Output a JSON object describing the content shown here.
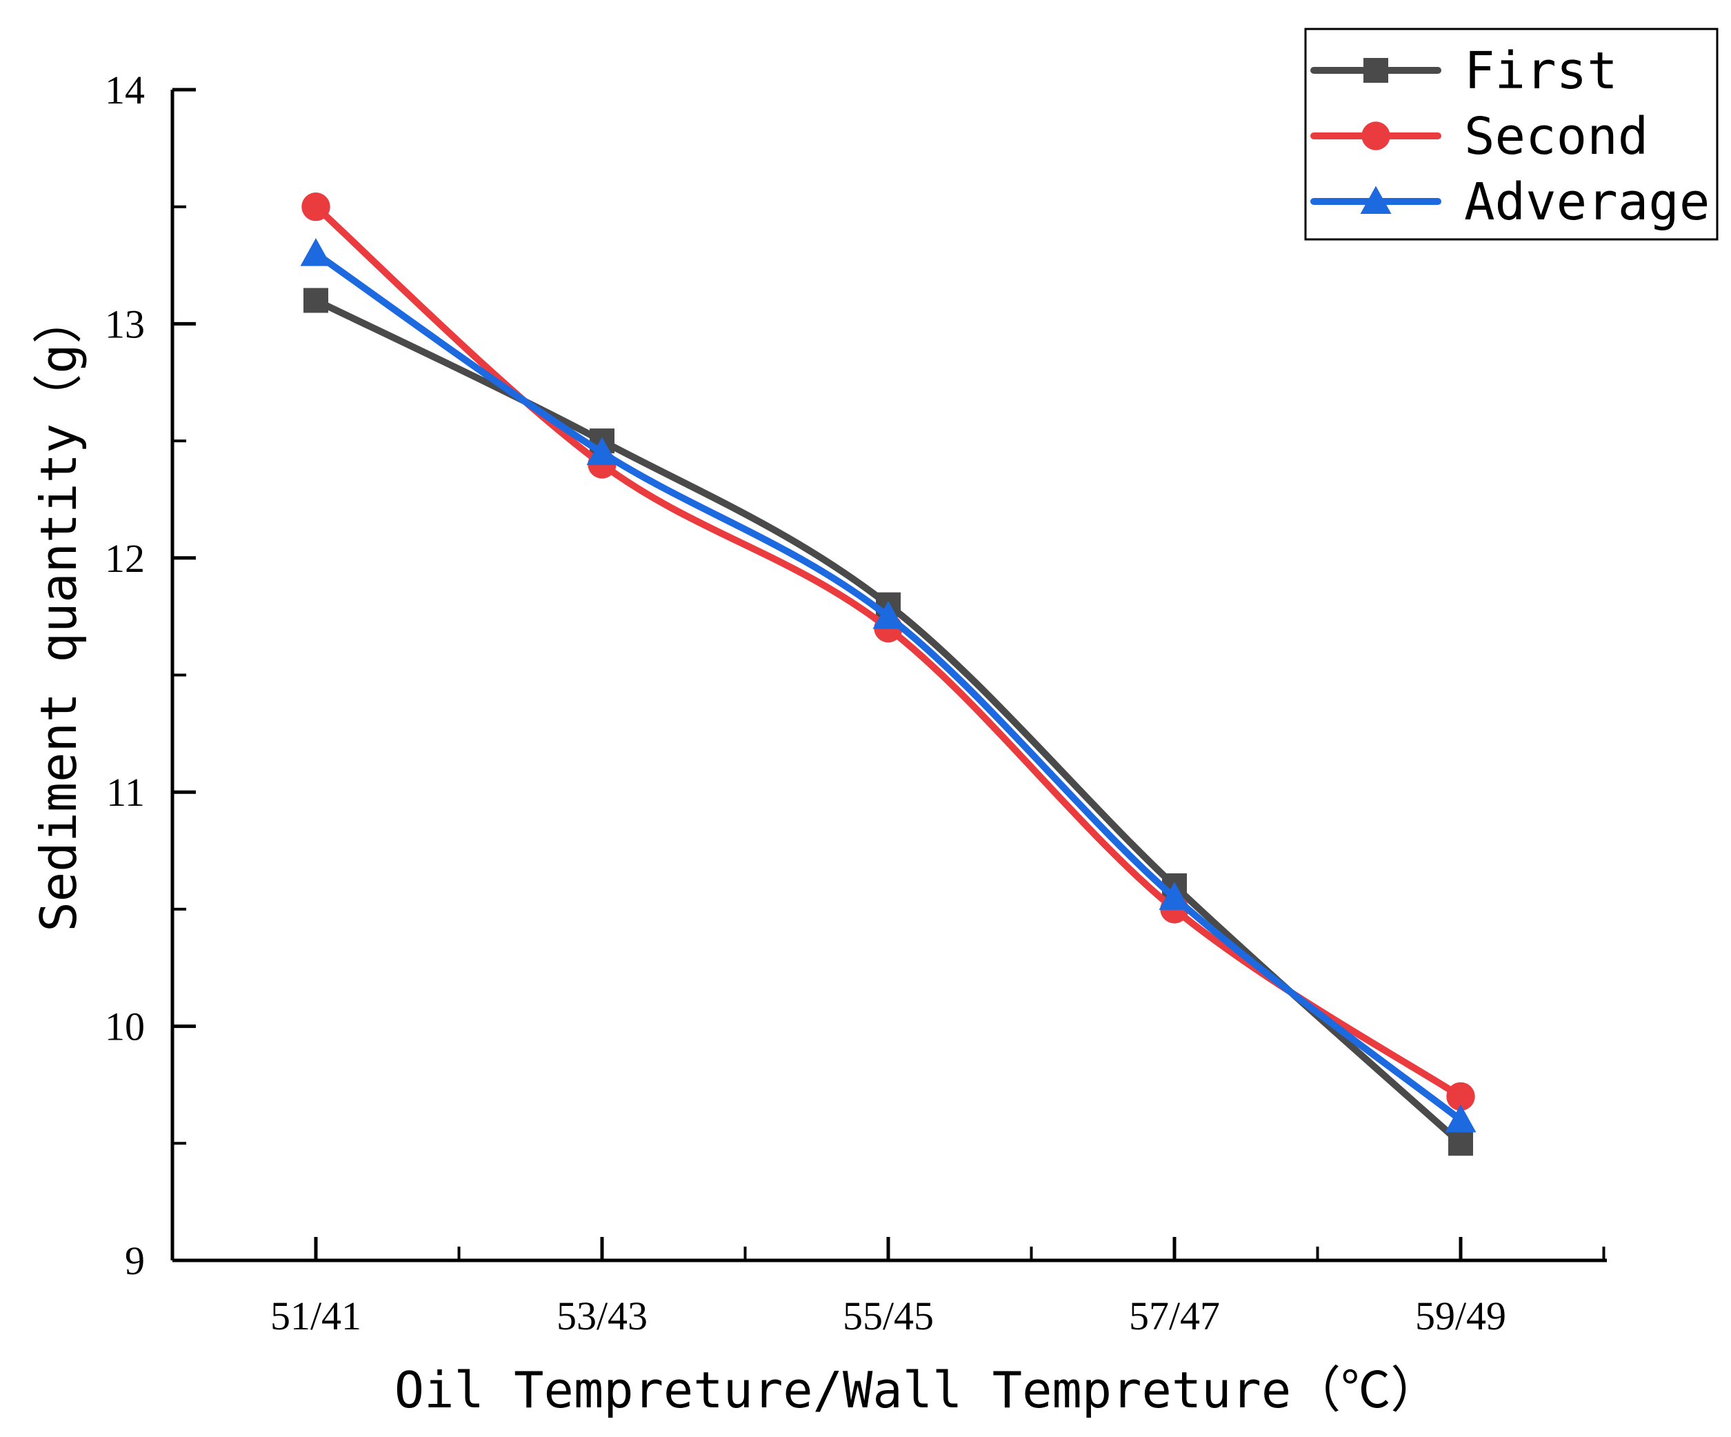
{
  "chart_data": {
    "type": "line",
    "title": "",
    "xlabel": "Oil Tempreture/Wall Tempreture（℃）",
    "ylabel": "Sediment quantity（g）",
    "categories": [
      "51/41",
      "53/43",
      "55/45",
      "57/47",
      "59/49"
    ],
    "ylim": [
      9,
      14
    ],
    "yticks": [
      9,
      10,
      11,
      12,
      13,
      14
    ],
    "grid": false,
    "legend_position": "top-right",
    "smooth": true,
    "series": [
      {
        "name": "First",
        "color": "#4a4a4a",
        "marker": "square",
        "values": [
          13.1,
          12.5,
          11.8,
          10.6,
          9.5
        ]
      },
      {
        "name": "Second",
        "color": "#ea3b3f",
        "marker": "circle",
        "values": [
          13.5,
          12.4,
          11.7,
          10.5,
          9.7
        ]
      },
      {
        "name": "Adverage",
        "color": "#1d6ae0",
        "marker": "triangle",
        "values": [
          13.3,
          12.45,
          11.75,
          10.55,
          9.6
        ]
      }
    ]
  }
}
